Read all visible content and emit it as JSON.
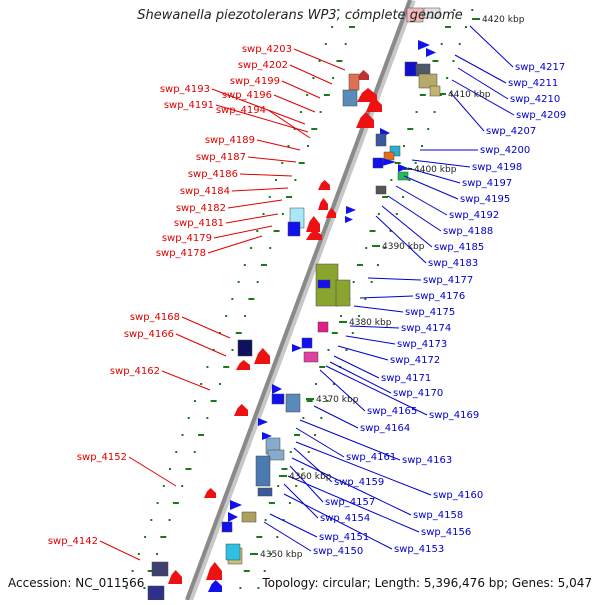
{
  "title": "Shewanella piezotolerans WP3, complete genome",
  "footer": {
    "accession": "Accession: NC_011566",
    "summary": "Topology: circular; Length: 5,396,476 bp; Genes: 5,047"
  },
  "colors": {
    "left_label": "#e00000",
    "right_label": "#0000cc",
    "backbone": "#8a8a8a",
    "tick": "#1a7a1a"
  },
  "scale_labels": [
    "4420 kbp",
    "4410 kbp",
    "4400 kbp",
    "4390 kbp",
    "4380 kbp",
    "4370 kbp",
    "4360 kbp",
    "4350 kbp"
  ],
  "left_genes": [
    "swp_4203",
    "swp_4202",
    "swp_4199",
    "swp_4196",
    "swp_4193",
    "swp_4191",
    "swp_4194",
    "swp_4189",
    "swp_4187",
    "swp_4186",
    "swp_4184",
    "swp_4182",
    "swp_4181",
    "swp_4179",
    "swp_4178",
    "swp_4168",
    "swp_4166",
    "swp_4162",
    "swp_4152",
    "swp_4142"
  ],
  "right_genes": [
    "swp_4217",
    "swp_4211",
    "swp_4210",
    "swp_4209",
    "swp_4207",
    "swp_4200",
    "swp_4198",
    "swp_4197",
    "swp_4195",
    "swp_4192",
    "swp_4188",
    "swp_4185",
    "swp_4183",
    "swp_4177",
    "swp_4176",
    "swp_4175",
    "swp_4174",
    "swp_4173",
    "swp_4172",
    "swp_4171",
    "swp_4170",
    "swp_4169",
    "swp_4165",
    "swp_4164",
    "swp_4163",
    "swp_4161",
    "swp_4160",
    "swp_4159",
    "swp_4158",
    "swp_4157",
    "swp_4156",
    "swp_4154",
    "swp_4153",
    "swp_4151",
    "swp_4150"
  ]
}
